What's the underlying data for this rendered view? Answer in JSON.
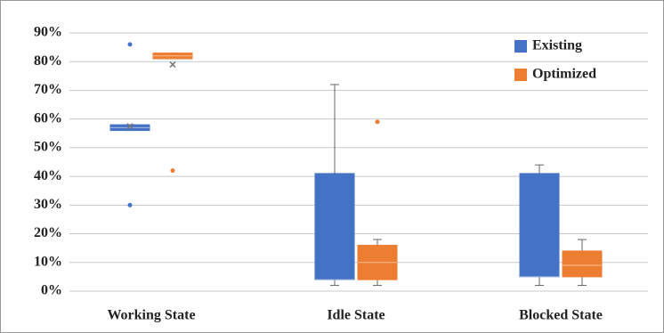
{
  "chart_data": {
    "type": "box",
    "categories": [
      "Working State",
      "Idle State",
      "Blocked State"
    ],
    "ylim": [
      0,
      90
    ],
    "yticks": [
      {
        "value": 0,
        "label": "0%"
      },
      {
        "value": 10,
        "label": "10%"
      },
      {
        "value": 20,
        "label": "20%"
      },
      {
        "value": 30,
        "label": "30%"
      },
      {
        "value": 40,
        "label": "40%"
      },
      {
        "value": 50,
        "label": "50%"
      },
      {
        "value": 60,
        "label": "60%"
      },
      {
        "value": 70,
        "label": "70%"
      },
      {
        "value": 80,
        "label": "80%"
      },
      {
        "value": 90,
        "label": "90%"
      }
    ],
    "grid": true,
    "legend": "top-right",
    "series": [
      {
        "name": "Existing",
        "color": "#4472c4",
        "boxes": [
          {
            "min": 56,
            "q1": 56,
            "median": 57,
            "q3": 58,
            "max": 58,
            "mean": 57.5,
            "outliers": [
              86,
              30
            ]
          },
          {
            "min": 2,
            "q1": 4,
            "median": 4,
            "q3": 41,
            "max": 72,
            "outliers": []
          },
          {
            "min": 2,
            "q1": 5,
            "median": 5,
            "q3": 41,
            "max": 44,
            "outliers": []
          }
        ]
      },
      {
        "name": "Optimized",
        "color": "#ed7d31",
        "boxes": [
          {
            "min": 81,
            "q1": 81,
            "median": 82,
            "q3": 83,
            "max": 83,
            "mean": 79,
            "outliers": [
              42
            ]
          },
          {
            "min": 2,
            "q1": 4,
            "median": 10,
            "q3": 16,
            "max": 18,
            "outliers": [
              59
            ]
          },
          {
            "min": 2,
            "q1": 5,
            "median": 9,
            "q3": 14,
            "max": 18,
            "outliers": []
          }
        ]
      }
    ]
  }
}
